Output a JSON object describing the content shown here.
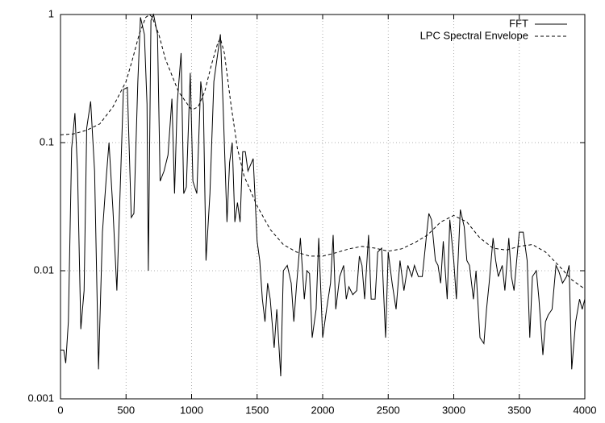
{
  "chart_data": {
    "type": "line",
    "xlim": [
      0,
      4000
    ],
    "xticks": [
      0,
      500,
      1000,
      1500,
      2000,
      2500,
      3000,
      3500,
      4000
    ],
    "ylim": [
      0.001,
      1
    ],
    "yticks": [
      0.001,
      0.01,
      0.1,
      1
    ],
    "log_y": true,
    "grid": true,
    "legend": "top-right",
    "series": [
      {
        "name": "FFT",
        "color": "#000000",
        "line_style": "solid",
        "x": [
          0,
          25,
          40,
          60,
          85,
          110,
          130,
          155,
          180,
          200,
          230,
          260,
          290,
          320,
          350,
          370,
          400,
          430,
          460,
          480,
          510,
          540,
          560,
          590,
          610,
          640,
          660,
          670,
          690,
          710,
          740,
          760,
          790,
          820,
          850,
          870,
          890,
          920,
          940,
          960,
          990,
          1010,
          1040,
          1070,
          1090,
          1110,
          1140,
          1170,
          1200,
          1220,
          1240,
          1270,
          1290,
          1310,
          1330,
          1350,
          1370,
          1390,
          1410,
          1430,
          1470,
          1500,
          1520,
          1540,
          1560,
          1580,
          1600,
          1630,
          1650,
          1680,
          1700,
          1730,
          1760,
          1780,
          1800,
          1830,
          1860,
          1880,
          1900,
          1920,
          1950,
          1970,
          2000,
          2030,
          2060,
          2080,
          2100,
          2130,
          2160,
          2180,
          2200,
          2230,
          2260,
          2280,
          2300,
          2320,
          2350,
          2370,
          2400,
          2420,
          2450,
          2480,
          2500,
          2530,
          2560,
          2590,
          2620,
          2650,
          2680,
          2700,
          2730,
          2760,
          2790,
          2810,
          2830,
          2860,
          2880,
          2900,
          2920,
          2950,
          2970,
          3000,
          3020,
          3050,
          3080,
          3100,
          3120,
          3150,
          3170,
          3200,
          3230,
          3250,
          3270,
          3300,
          3320,
          3340,
          3370,
          3390,
          3420,
          3440,
          3460,
          3480,
          3500,
          3530,
          3560,
          3580,
          3600,
          3630,
          3650,
          3680,
          3700,
          3720,
          3750,
          3780,
          3800,
          3830,
          3860,
          3880,
          3900,
          3930,
          3960,
          3980,
          4000
        ],
        "values": [
          0.0024,
          0.0024,
          0.0019,
          0.004,
          0.09,
          0.17,
          0.06,
          0.0035,
          0.007,
          0.13,
          0.21,
          0.06,
          0.0017,
          0.02,
          0.055,
          0.1,
          0.03,
          0.007,
          0.06,
          0.26,
          0.27,
          0.026,
          0.028,
          0.3,
          0.95,
          0.7,
          0.2,
          0.01,
          0.9,
          1.0,
          0.7,
          0.05,
          0.06,
          0.08,
          0.22,
          0.04,
          0.2,
          0.5,
          0.04,
          0.045,
          0.35,
          0.05,
          0.04,
          0.3,
          0.2,
          0.012,
          0.04,
          0.3,
          0.5,
          0.7,
          0.2,
          0.024,
          0.07,
          0.1,
          0.024,
          0.034,
          0.024,
          0.085,
          0.085,
          0.06,
          0.075,
          0.017,
          0.012,
          0.006,
          0.004,
          0.008,
          0.006,
          0.0025,
          0.005,
          0.0015,
          0.01,
          0.011,
          0.008,
          0.004,
          0.0075,
          0.018,
          0.006,
          0.01,
          0.0095,
          0.003,
          0.005,
          0.018,
          0.003,
          0.005,
          0.008,
          0.019,
          0.005,
          0.009,
          0.011,
          0.006,
          0.0075,
          0.0065,
          0.007,
          0.013,
          0.011,
          0.006,
          0.019,
          0.006,
          0.006,
          0.014,
          0.015,
          0.003,
          0.014,
          0.008,
          0.005,
          0.012,
          0.007,
          0.011,
          0.009,
          0.011,
          0.009,
          0.009,
          0.018,
          0.028,
          0.025,
          0.012,
          0.011,
          0.008,
          0.017,
          0.006,
          0.025,
          0.012,
          0.006,
          0.03,
          0.022,
          0.012,
          0.011,
          0.006,
          0.01,
          0.003,
          0.0027,
          0.005,
          0.008,
          0.018,
          0.012,
          0.009,
          0.011,
          0.007,
          0.018,
          0.009,
          0.007,
          0.012,
          0.02,
          0.02,
          0.012,
          0.003,
          0.009,
          0.01,
          0.006,
          0.0022,
          0.004,
          0.0045,
          0.005,
          0.011,
          0.01,
          0.008,
          0.009,
          0.011,
          0.0017,
          0.004,
          0.006,
          0.005,
          0.006
        ]
      },
      {
        "name": "LPC Spectral Envelope",
        "color": "#000000",
        "line_style": "dashed",
        "x": [
          0,
          100,
          200,
          300,
          400,
          500,
          550,
          600,
          650,
          680,
          700,
          750,
          800,
          900,
          1000,
          1050,
          1100,
          1150,
          1200,
          1220,
          1250,
          1300,
          1350,
          1400,
          1500,
          1600,
          1700,
          1800,
          1900,
          2000,
          2100,
          2200,
          2300,
          2400,
          2500,
          2600,
          2700,
          2800,
          2900,
          3000,
          3100,
          3200,
          3300,
          3400,
          3500,
          3600,
          3700,
          3800,
          3900,
          4000
        ],
        "values": [
          0.115,
          0.117,
          0.125,
          0.14,
          0.19,
          0.3,
          0.45,
          0.7,
          0.95,
          1.0,
          0.95,
          0.7,
          0.45,
          0.25,
          0.18,
          0.19,
          0.25,
          0.4,
          0.6,
          0.65,
          0.5,
          0.2,
          0.09,
          0.055,
          0.032,
          0.021,
          0.016,
          0.014,
          0.013,
          0.013,
          0.0138,
          0.0148,
          0.0155,
          0.015,
          0.0142,
          0.0148,
          0.0165,
          0.019,
          0.024,
          0.027,
          0.024,
          0.018,
          0.015,
          0.0145,
          0.0155,
          0.016,
          0.014,
          0.011,
          0.0085,
          0.0072
        ]
      }
    ]
  }
}
